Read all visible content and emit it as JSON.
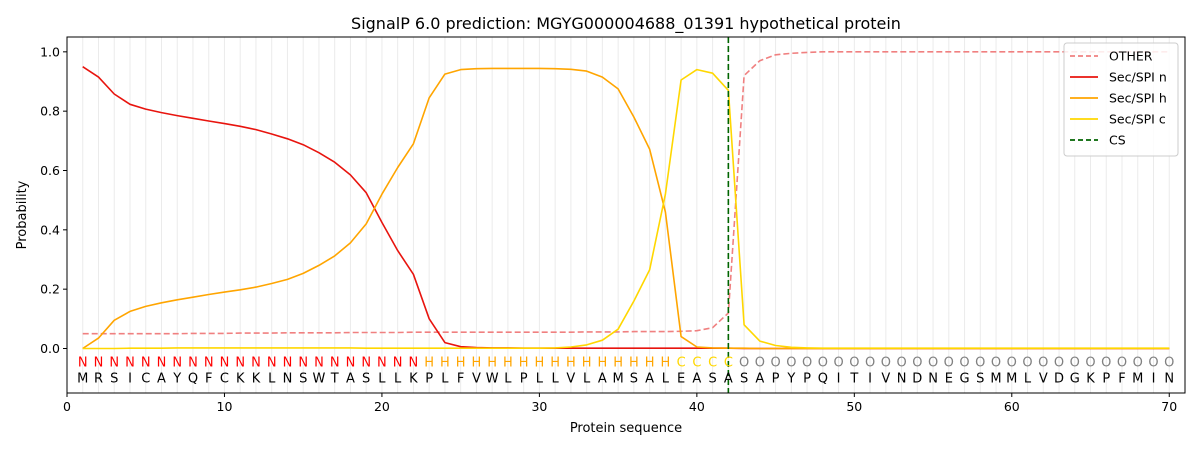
{
  "chart_data": {
    "type": "line",
    "title": "SignalP 6.0 prediction: MGYG000004688_01391 hypothetical protein",
    "xlabel": "Protein sequence",
    "ylabel": "Probability",
    "xlim": [
      0,
      71
    ],
    "ylim": [
      -0.15,
      1.05
    ],
    "xticks": [
      0,
      10,
      20,
      30,
      40,
      50,
      60,
      70
    ],
    "yticks": [
      0.0,
      0.2,
      0.4,
      0.6,
      0.8,
      1.0
    ],
    "ytick_labels": [
      "0.0",
      "0.2",
      "0.4",
      "0.6",
      "0.8",
      "1.0"
    ],
    "grid": "vertical lines at each residue",
    "legend_position": "top-right",
    "sequence": "MRSICAYQFCKKLNSWTASLLKPLFVWLPLLVLAMSALEASASAPYPQITIVNDNEGSMMLVDGKPFMIN",
    "labels": "NNNNNNNNNNNNNNNNNNNNNNHHHHHHHHHHHHHHHHCCCCOOOOOOOOOOOOOOOOOOOOOOOOOOOOOO",
    "label_colors": {
      "N": "#ff0000",
      "H": "#ffa500",
      "C": "#ffd700",
      "O": "#808080"
    },
    "cs_position": 42,
    "series": [
      {
        "name": "OTHER",
        "color": "#f08080",
        "dash": "dashed",
        "values": [
          0.05,
          0.05,
          0.05,
          0.05,
          0.05,
          0.05,
          0.05,
          0.051,
          0.051,
          0.051,
          0.052,
          0.052,
          0.052,
          0.053,
          0.053,
          0.053,
          0.053,
          0.054,
          0.054,
          0.054,
          0.054,
          0.055,
          0.055,
          0.055,
          0.055,
          0.055,
          0.055,
          0.055,
          0.055,
          0.055,
          0.055,
          0.055,
          0.056,
          0.056,
          0.056,
          0.057,
          0.057,
          0.057,
          0.058,
          0.06,
          0.07,
          0.12,
          0.92,
          0.97,
          0.99,
          0.995,
          0.998,
          1.0,
          1.0,
          1.0,
          1.0,
          1.0,
          1.0,
          1.0,
          1.0,
          1.0,
          1.0,
          1.0,
          1.0,
          1.0,
          1.0,
          1.0,
          1.0,
          1.0,
          1.0,
          1.0,
          1.0,
          1.0,
          1.0,
          1.0
        ]
      },
      {
        "name": "Sec/SPI n",
        "color": "#e8140e",
        "dash": "solid",
        "values": [
          0.95,
          0.915,
          0.858,
          0.823,
          0.807,
          0.795,
          0.785,
          0.776,
          0.767,
          0.758,
          0.749,
          0.738,
          0.723,
          0.707,
          0.687,
          0.66,
          0.628,
          0.585,
          0.525,
          0.425,
          0.33,
          0.25,
          0.1,
          0.02,
          0.006,
          0.003,
          0.002,
          0.002,
          0.001,
          0.001,
          0.001,
          0.001,
          0.001,
          0.001,
          0.001,
          0.001,
          0.001,
          0.001,
          0.001,
          0.001,
          0.001,
          0.001,
          0.0,
          0.0,
          0.0,
          0.0,
          0.0,
          0.0,
          0.0,
          0.0,
          0.0,
          0.0,
          0.0,
          0.0,
          0.0,
          0.0,
          0.0,
          0.0,
          0.0,
          0.0,
          0.0,
          0.0,
          0.0,
          0.0,
          0.0,
          0.0,
          0.0,
          0.0,
          0.0,
          0.0
        ]
      },
      {
        "name": "Sec/SPI h",
        "color": "#ffa500",
        "dash": "solid",
        "values": [
          0.0,
          0.035,
          0.095,
          0.125,
          0.142,
          0.154,
          0.164,
          0.173,
          0.182,
          0.19,
          0.198,
          0.207,
          0.219,
          0.233,
          0.253,
          0.28,
          0.312,
          0.356,
          0.42,
          0.52,
          0.61,
          0.69,
          0.845,
          0.925,
          0.94,
          0.943,
          0.944,
          0.944,
          0.944,
          0.944,
          0.943,
          0.941,
          0.935,
          0.915,
          0.875,
          0.78,
          0.672,
          0.46,
          0.04,
          0.005,
          0.002,
          0.001,
          0.001,
          0.0,
          0.0,
          0.0,
          0.0,
          0.0,
          0.0,
          0.0,
          0.0,
          0.0,
          0.0,
          0.0,
          0.0,
          0.0,
          0.0,
          0.0,
          0.0,
          0.0,
          0.0,
          0.0,
          0.0,
          0.0,
          0.0,
          0.0,
          0.0,
          0.0,
          0.0,
          0.0
        ]
      },
      {
        "name": "Sec/SPI c",
        "color": "#ffd700",
        "dash": "solid",
        "values": [
          0.0,
          0.0,
          0.0,
          0.001,
          0.001,
          0.001,
          0.002,
          0.002,
          0.002,
          0.002,
          0.002,
          0.002,
          0.002,
          0.002,
          0.002,
          0.002,
          0.002,
          0.002,
          0.001,
          0.001,
          0.001,
          0.001,
          0.001,
          0.001,
          0.001,
          0.001,
          0.001,
          0.001,
          0.001,
          0.001,
          0.002,
          0.005,
          0.012,
          0.028,
          0.065,
          0.16,
          0.265,
          0.52,
          0.905,
          0.94,
          0.928,
          0.87,
          0.08,
          0.025,
          0.01,
          0.004,
          0.002,
          0.001,
          0.001,
          0.001,
          0.001,
          0.001,
          0.001,
          0.001,
          0.001,
          0.001,
          0.001,
          0.001,
          0.001,
          0.001,
          0.001,
          0.001,
          0.001,
          0.001,
          0.001,
          0.001,
          0.001,
          0.001,
          0.001,
          0.001
        ]
      },
      {
        "name": "CS",
        "color": "#006400",
        "dash": "dashed",
        "values": []
      }
    ]
  }
}
